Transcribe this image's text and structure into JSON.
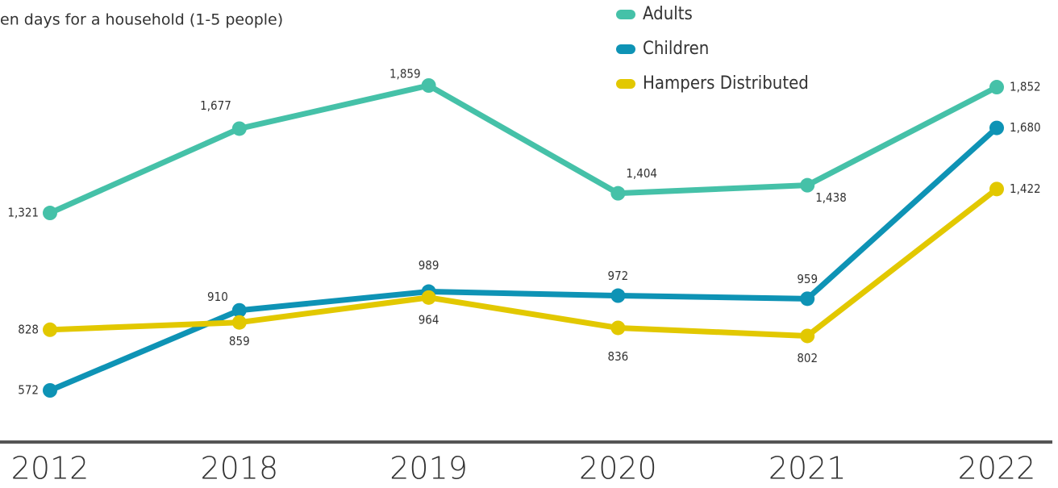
{
  "chart_data": {
    "type": "line",
    "subtitle": "en days for a household (1-5 people)",
    "categories": [
      "2012",
      "2018",
      "2019",
      "2020",
      "2021",
      "2022"
    ],
    "series": [
      {
        "name": "Adults",
        "color": "#45c1a8",
        "values": [
          1321,
          1677,
          1859,
          1404,
          1438,
          1852
        ],
        "value_labels": [
          "1,321",
          "1,677",
          "1,859",
          "1,404",
          "1,438",
          "1,852"
        ]
      },
      {
        "name": "Children",
        "color": "#0e93b5",
        "values": [
          572,
          910,
          989,
          972,
          959,
          1680
        ],
        "value_labels": [
          "572",
          "910",
          "989",
          "972",
          "959",
          "1,680"
        ]
      },
      {
        "name": "Hampers Distributed",
        "color": "#e2c800",
        "values": [
          828,
          859,
          964,
          836,
          802,
          1422
        ],
        "value_labels": [
          "828",
          "859",
          "964",
          "836",
          "802",
          "1,422"
        ]
      }
    ]
  }
}
